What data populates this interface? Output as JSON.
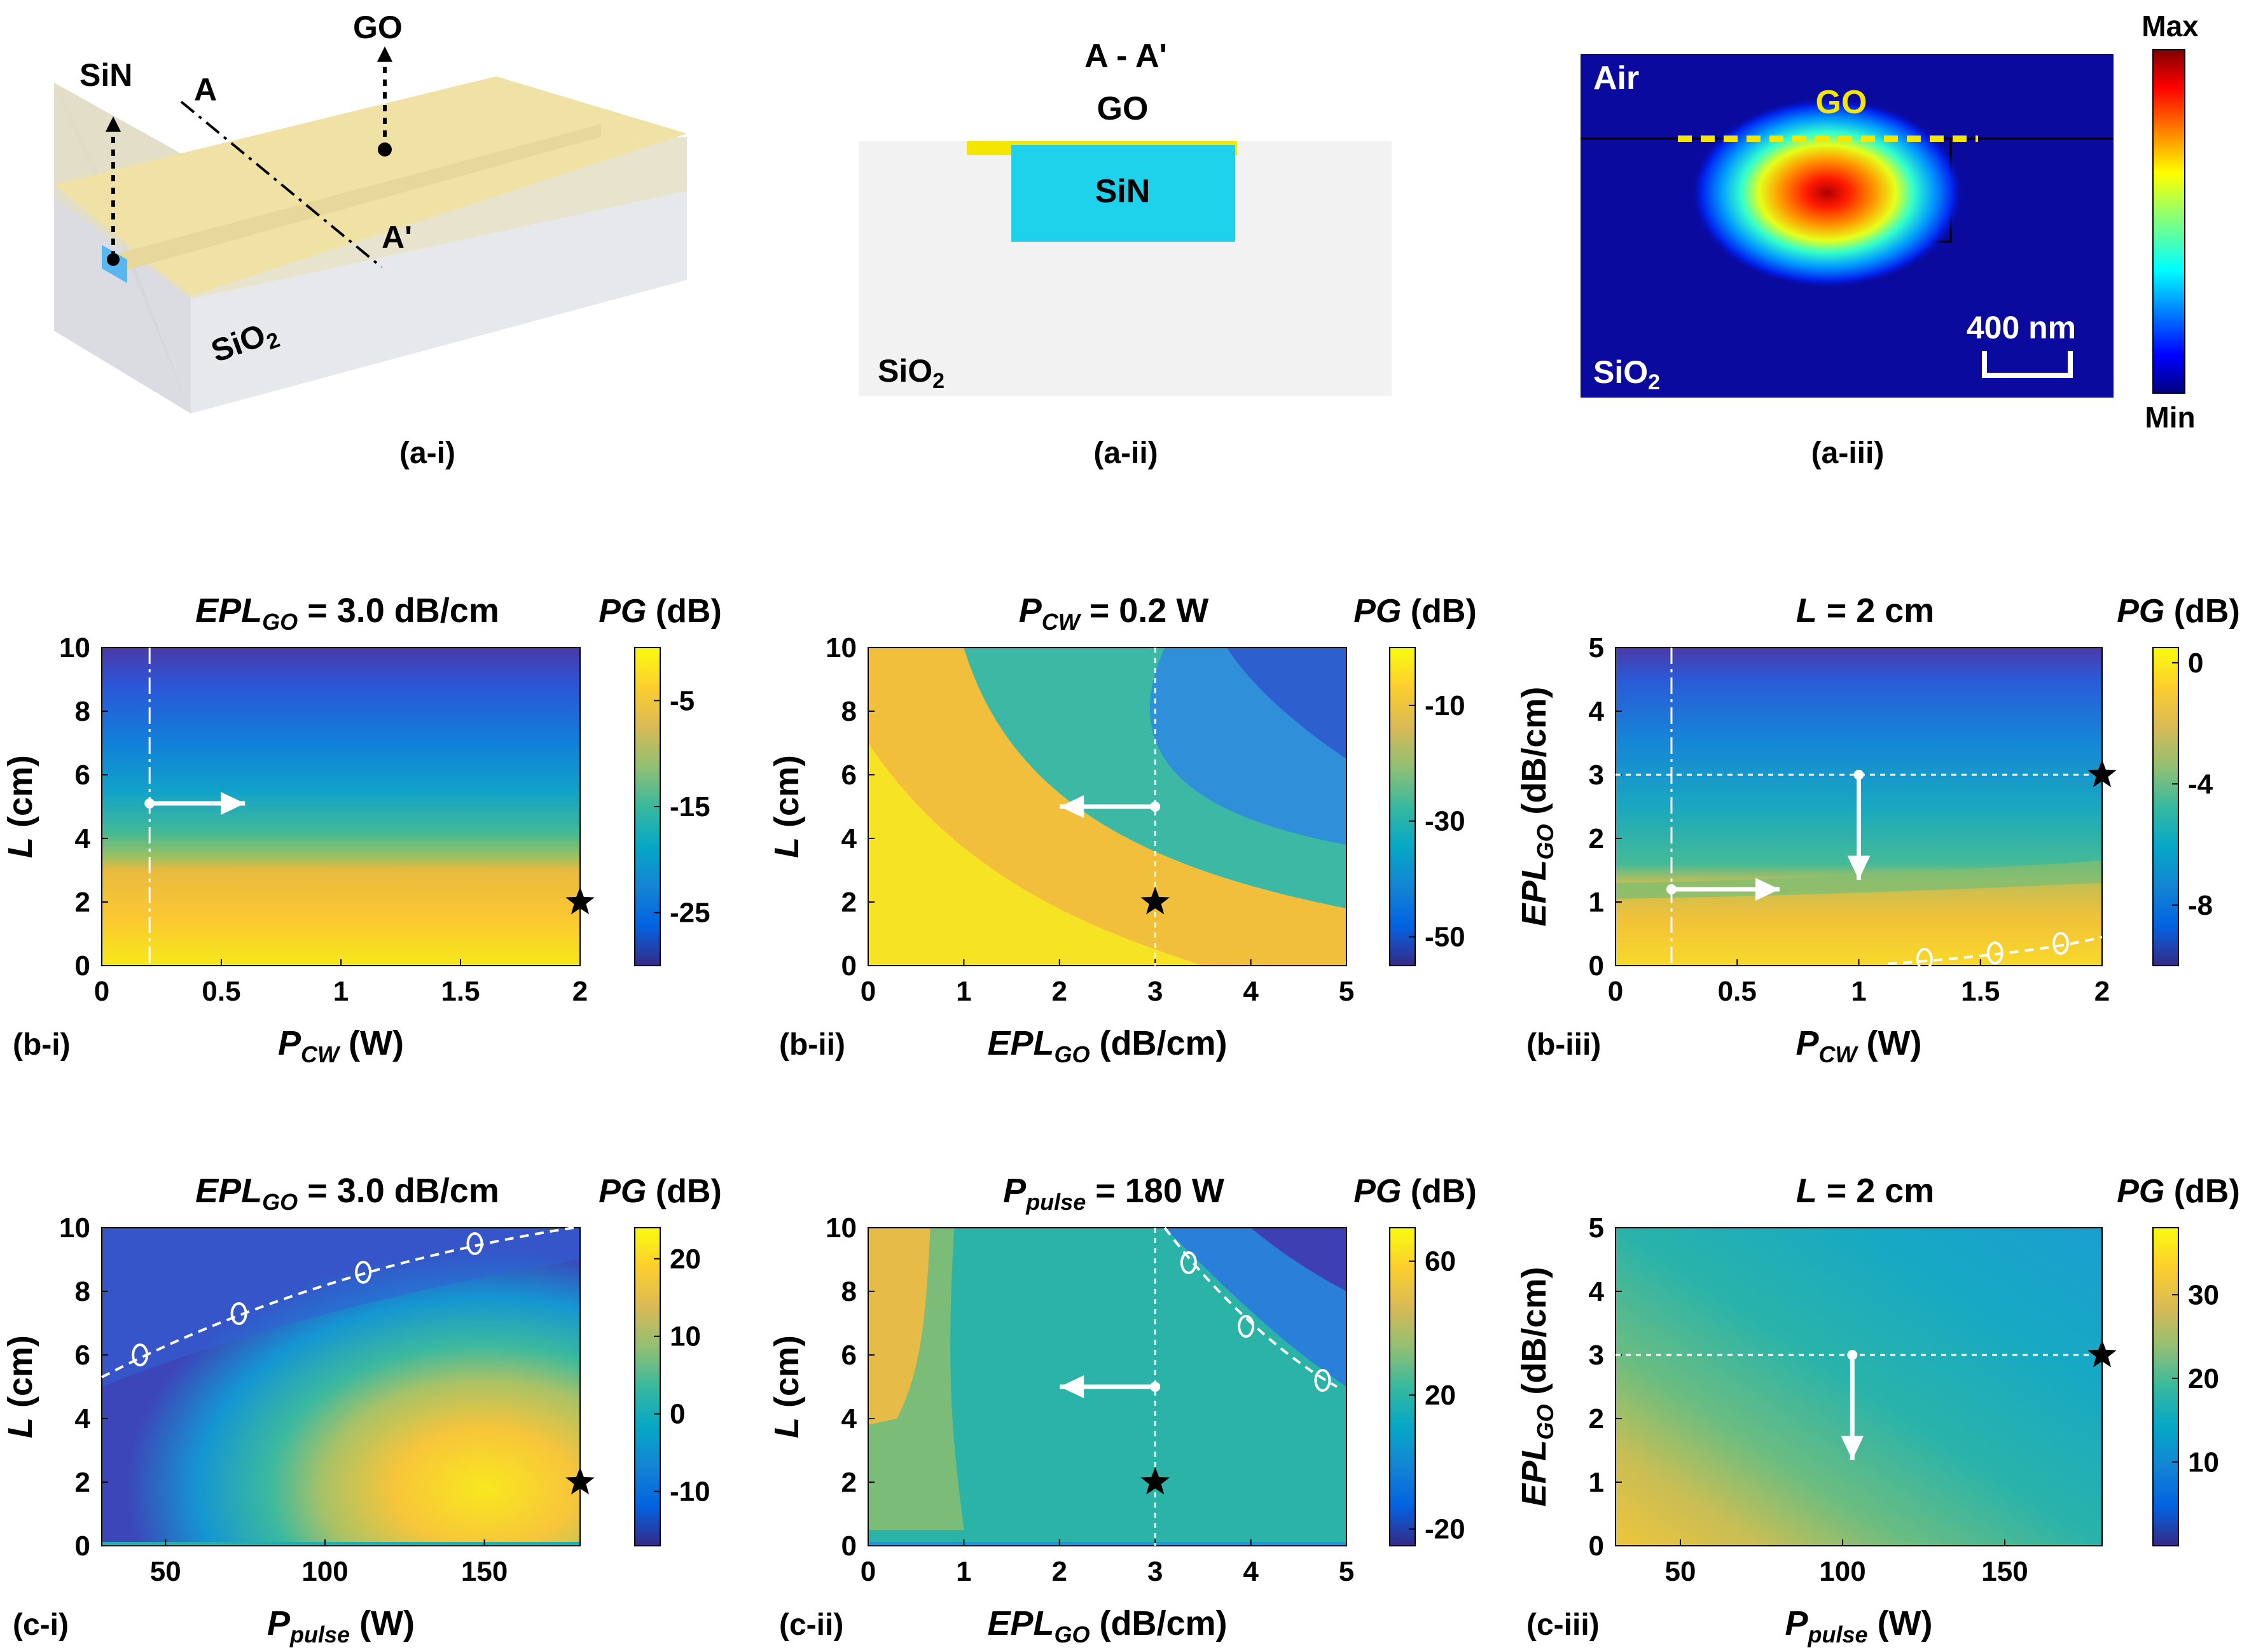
{
  "colors": {
    "parula": [
      "#352a87",
      "#0363e1",
      "#1485d4",
      "#06a7c6",
      "#38b99e",
      "#92bf73",
      "#d9ba56",
      "#fcce2e",
      "#f9fb0e"
    ],
    "jet": [
      "#00007f",
      "#0000ff",
      "#007fff",
      "#00ffff",
      "#7fff7f",
      "#ffff00",
      "#ff7f00",
      "#ff0000",
      "#7f0000"
    ],
    "go": "#f5e600",
    "sin": "#1ed2ec",
    "sio2_block": "#dfe2e8",
    "go_slab": "#f4e7a8",
    "cross_bg": "#f2f2f2",
    "mode_bg": "#0a0a9e"
  },
  "panel_a": {
    "a1": {
      "label": "(a-i)",
      "sin": "SiN",
      "go": "GO",
      "cut_start": "A",
      "cut_end": "A'",
      "substrate": "SiO",
      "sub2": "2"
    },
    "a2": {
      "label": "(a-ii)",
      "title": "A - A'",
      "go": "GO",
      "sin": "SiN",
      "substrate": "SiO",
      "sub2": "2"
    },
    "a3": {
      "label": "(a-iii)",
      "air": "Air",
      "go": "GO",
      "substrate": "SiO",
      "sub2": "2",
      "scale": "400 nm",
      "cbar_max": "Max",
      "cbar_min": "Min"
    }
  },
  "chart_data": [
    {
      "id": "b1",
      "type": "heatmap",
      "label": "(b-i)",
      "title": "EPL",
      "title_sub": "GO",
      "title_rest": " = 3.0 dB/cm",
      "xlabel": "P",
      "xlabel_sub": "CW",
      "xlabel_rest": " (W)",
      "ylabel": "L",
      "ylabel_rest": " (cm)",
      "cbar_title": "PG",
      "cbar_unit": " (dB)",
      "x_ticks": [
        "0",
        "0.5",
        "1",
        "1.5",
        "2"
      ],
      "y_ticks": [
        "0",
        "2",
        "4",
        "6",
        "8",
        "10"
      ],
      "cbar_ticks": [
        "-5",
        "-15",
        "-25"
      ],
      "xlim": [
        0,
        2
      ],
      "ylim": [
        0,
        10
      ],
      "cbar_range": [
        -30,
        0
      ],
      "star": [
        2,
        2
      ],
      "marker": [
        0.2,
        5.1
      ],
      "arrow": "right",
      "vline": 0.2
    },
    {
      "id": "b2",
      "type": "heatmap",
      "label": "(b-ii)",
      "title": "P",
      "title_sub": "CW",
      "title_rest": " = 0.2 W",
      "xlabel": "EPL",
      "xlabel_sub": "GO",
      "xlabel_rest": " (dB/cm)",
      "ylabel": "L",
      "ylabel_rest": " (cm)",
      "cbar_title": "PG",
      "cbar_unit": " (dB)",
      "x_ticks": [
        "0",
        "1",
        "2",
        "3",
        "4",
        "5"
      ],
      "y_ticks": [
        "0",
        "2",
        "4",
        "6",
        "8",
        "10"
      ],
      "cbar_ticks": [
        "-10",
        "-30",
        "-50"
      ],
      "xlim": [
        0,
        5
      ],
      "ylim": [
        0,
        10
      ],
      "cbar_range": [
        -55,
        0
      ],
      "star": [
        3,
        2
      ],
      "marker": [
        3,
        5
      ],
      "arrow": "left",
      "vline": 3
    },
    {
      "id": "b3",
      "type": "heatmap",
      "label": "(b-iii)",
      "title": "L",
      "title_sub": "",
      "title_rest": " = 2 cm",
      "xlabel": "P",
      "xlabel_sub": "CW",
      "xlabel_rest": " (W)",
      "ylabel": "EPL",
      "ylabel_sub": "GO",
      "ylabel_rest": " (dB/cm)",
      "cbar_title": "PG",
      "cbar_unit": " (dB)",
      "x_ticks": [
        "0",
        "0.5",
        "1",
        "1.5",
        "2"
      ],
      "y_ticks": [
        "0",
        "1",
        "2",
        "3",
        "4",
        "5"
      ],
      "cbar_ticks": [
        "0",
        "-4",
        "-8"
      ],
      "xlim": [
        0,
        2
      ],
      "ylim": [
        0,
        5
      ],
      "cbar_range": [
        -10,
        0.5
      ],
      "star": [
        2,
        3
      ],
      "hline": 3,
      "vline": 0.23,
      "marker": [
        1,
        3
      ],
      "marker2": [
        0.23,
        1.2
      ],
      "arrow": "down-right",
      "contour_label": "0"
    },
    {
      "id": "c1",
      "type": "heatmap",
      "label": "(c-i)",
      "title": "EPL",
      "title_sub": "GO",
      "title_rest": " = 3.0 dB/cm",
      "xlabel": "P",
      "xlabel_sub": "pulse",
      "xlabel_rest": " (W)",
      "ylabel": "L",
      "ylabel_rest": " (cm)",
      "cbar_title": "PG",
      "cbar_unit": " (dB)",
      "x_ticks": [
        "50",
        "100",
        "150"
      ],
      "y_ticks": [
        "0",
        "2",
        "4",
        "6",
        "8",
        "10"
      ],
      "cbar_ticks": [
        "20",
        "10",
        "0",
        "-10"
      ],
      "xlim": [
        30,
        180
      ],
      "ylim": [
        0,
        10
      ],
      "cbar_range": [
        -17,
        24
      ],
      "star": [
        180,
        2
      ],
      "contour_label": "0"
    },
    {
      "id": "c2",
      "type": "heatmap",
      "label": "(c-ii)",
      "title": "P",
      "title_sub": "pulse",
      "title_rest": " = 180 W",
      "xlabel": "EPL",
      "xlabel_sub": "GO",
      "xlabel_rest": " (dB/cm)",
      "ylabel": "L",
      "ylabel_rest": " (cm)",
      "cbar_title": "PG",
      "cbar_unit": " (dB)",
      "x_ticks": [
        "0",
        "1",
        "2",
        "3",
        "4",
        "5"
      ],
      "y_ticks": [
        "0",
        "2",
        "4",
        "6",
        "8",
        "10"
      ],
      "cbar_ticks": [
        "60",
        "20",
        "-20"
      ],
      "xlim": [
        0,
        5
      ],
      "ylim": [
        0,
        10
      ],
      "cbar_range": [
        -25,
        70
      ],
      "star": [
        3,
        2
      ],
      "marker": [
        3,
        5
      ],
      "arrow": "left",
      "vline": 3,
      "contour_label": "0"
    },
    {
      "id": "c3",
      "type": "heatmap",
      "label": "(c-iii)",
      "title": "L",
      "title_sub": "",
      "title_rest": " = 2 cm",
      "xlabel": "P",
      "xlabel_sub": "pulse",
      "xlabel_rest": " (W)",
      "ylabel": "EPL",
      "ylabel_sub": "GO",
      "ylabel_rest": " (dB/cm)",
      "cbar_title": "PG",
      "cbar_unit": " (dB)",
      "x_ticks": [
        "50",
        "100",
        "150"
      ],
      "y_ticks": [
        "0",
        "1",
        "2",
        "3",
        "4",
        "5"
      ],
      "cbar_ticks": [
        "30",
        "20",
        "10"
      ],
      "xlim": [
        30,
        180
      ],
      "ylim": [
        0,
        5
      ],
      "cbar_range": [
        0,
        38
      ],
      "star": [
        180,
        3
      ],
      "hline": 3,
      "marker": [
        103,
        3
      ],
      "arrow": "down"
    }
  ]
}
